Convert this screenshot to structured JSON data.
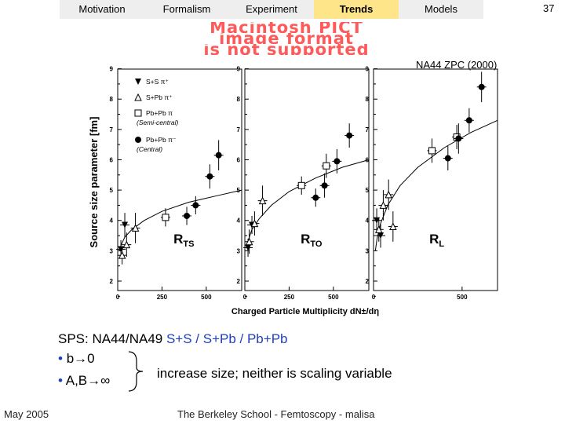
{
  "nav": {
    "tabs": [
      "Motivation",
      "Formalism",
      "Experiment",
      "Trends",
      "Models"
    ],
    "active": "Trends",
    "active_color": "#ffe58a"
  },
  "slide_number": "37",
  "placeholder": {
    "lines": [
      "Macintosh PICT",
      "image format",
      "is not supported"
    ],
    "color": "#ff5a5a"
  },
  "reference": "NA44 ZPC (2000)",
  "chart_data": [
    {
      "type": "scatter",
      "panel_label": "R_TS",
      "label_main": "R",
      "label_sub": "TS",
      "x_ticks": [
        0,
        250,
        500
      ],
      "ylim": [
        2,
        9
      ],
      "y_ticks": [
        2,
        3,
        4,
        5,
        6,
        7,
        8,
        9
      ],
      "legend": [
        {
          "marker": "filled-down-triangle",
          "label": "S+S  π⁺"
        },
        {
          "marker": "open-triangle",
          "label": "S+Pb  π⁺"
        },
        {
          "marker": "open-square",
          "label": "Pb+Pb  π",
          "note": "(Semi-central)"
        },
        {
          "marker": "filled-circle",
          "label": "Pb+Pb  π⁻",
          "note": "(Central)"
        }
      ],
      "curve": [
        [
          10,
          3.0
        ],
        [
          20,
          3.2
        ],
        [
          40,
          3.45
        ],
        [
          80,
          3.7
        ],
        [
          150,
          4.0
        ],
        [
          250,
          4.3
        ],
        [
          400,
          4.6
        ],
        [
          550,
          4.8
        ],
        [
          700,
          5.0
        ]
      ],
      "points": [
        {
          "marker": "filled-down-triangle",
          "x": 18,
          "y": 3.05,
          "err": 0.3
        },
        {
          "marker": "filled-down-triangle",
          "x": 40,
          "y": 3.85,
          "err": 0.4
        },
        {
          "marker": "open-triangle",
          "x": 25,
          "y": 2.85,
          "err": 0.3
        },
        {
          "marker": "open-triangle",
          "x": 50,
          "y": 3.2,
          "err": 0.4
        },
        {
          "marker": "open-triangle",
          "x": 100,
          "y": 3.75,
          "err": 0.5
        },
        {
          "marker": "open-square",
          "x": 270,
          "y": 4.1,
          "err": 0.3
        },
        {
          "marker": "filled-circle",
          "x": 390,
          "y": 4.15,
          "err": 0.3
        },
        {
          "marker": "filled-circle",
          "x": 440,
          "y": 4.5,
          "err": 0.3
        },
        {
          "marker": "filled-circle",
          "x": 520,
          "y": 5.45,
          "err": 0.4
        },
        {
          "marker": "filled-circle",
          "x": 570,
          "y": 6.15,
          "err": 0.5
        }
      ]
    },
    {
      "type": "scatter",
      "panel_label": "R_TO",
      "label_main": "R",
      "label_sub": "TO",
      "x_ticks": [
        0,
        250,
        500
      ],
      "ylim": [
        2,
        9
      ],
      "y_ticks": [
        2,
        3,
        4,
        5,
        6,
        7,
        8,
        9
      ],
      "curve": [
        [
          10,
          3.1
        ],
        [
          20,
          3.35
        ],
        [
          40,
          3.7
        ],
        [
          80,
          4.05
        ],
        [
          150,
          4.5
        ],
        [
          250,
          4.95
        ],
        [
          400,
          5.4
        ],
        [
          550,
          5.75
        ],
        [
          700,
          6.0
        ]
      ],
      "points": [
        {
          "marker": "filled-down-triangle",
          "x": 18,
          "y": 3.1,
          "err": 0.3
        },
        {
          "marker": "filled-down-triangle",
          "x": 40,
          "y": 3.85,
          "err": 0.3
        },
        {
          "marker": "open-triangle",
          "x": 25,
          "y": 3.3,
          "err": 0.4
        },
        {
          "marker": "open-triangle",
          "x": 55,
          "y": 3.9,
          "err": 0.4
        },
        {
          "marker": "open-triangle",
          "x": 100,
          "y": 4.65,
          "err": 0.5
        },
        {
          "marker": "open-square",
          "x": 320,
          "y": 5.15,
          "err": 0.3
        },
        {
          "marker": "open-square",
          "x": 460,
          "y": 5.8,
          "err": 0.4
        },
        {
          "marker": "filled-circle",
          "x": 400,
          "y": 4.75,
          "err": 0.3
        },
        {
          "marker": "filled-circle",
          "x": 450,
          "y": 5.15,
          "err": 0.4
        },
        {
          "marker": "filled-circle",
          "x": 520,
          "y": 5.95,
          "err": 0.4
        },
        {
          "marker": "filled-circle",
          "x": 590,
          "y": 6.8,
          "err": 0.4
        }
      ]
    },
    {
      "type": "scatter",
      "panel_label": "R_L",
      "label_main": "R",
      "label_sub": "L",
      "x_ticks": [
        0,
        500
      ],
      "ylim": [
        2,
        9
      ],
      "y_ticks": [
        2,
        3,
        4,
        5,
        6,
        7,
        8,
        9
      ],
      "xlabel": "Charged Particle Multiplicity dN±/dη",
      "ylabel": "Source size parameter [fm]",
      "curve": [
        [
          10,
          3.0
        ],
        [
          20,
          3.4
        ],
        [
          40,
          3.9
        ],
        [
          80,
          4.5
        ],
        [
          150,
          5.15
        ],
        [
          250,
          5.75
        ],
        [
          400,
          6.4
        ],
        [
          550,
          6.9
        ],
        [
          700,
          7.3
        ]
      ],
      "points": [
        {
          "marker": "filled-down-triangle",
          "x": 18,
          "y": 4.0,
          "err": 0.4
        },
        {
          "marker": "filled-down-triangle",
          "x": 40,
          "y": 3.5,
          "err": 0.4
        },
        {
          "marker": "open-triangle",
          "x": 30,
          "y": 3.7,
          "err": 0.4
        },
        {
          "marker": "open-triangle",
          "x": 55,
          "y": 4.5,
          "err": 0.5
        },
        {
          "marker": "open-triangle",
          "x": 85,
          "y": 4.85,
          "err": 0.5
        },
        {
          "marker": "open-triangle",
          "x": 110,
          "y": 3.8,
          "err": 0.5
        },
        {
          "marker": "open-square",
          "x": 330,
          "y": 6.3,
          "err": 0.4
        },
        {
          "marker": "open-square",
          "x": 470,
          "y": 6.75,
          "err": 0.4
        },
        {
          "marker": "filled-circle",
          "x": 420,
          "y": 6.05,
          "err": 0.4
        },
        {
          "marker": "filled-circle",
          "x": 480,
          "y": 6.7,
          "err": 0.5
        },
        {
          "marker": "filled-circle",
          "x": 540,
          "y": 7.3,
          "err": 0.4
        },
        {
          "marker": "filled-circle",
          "x": 610,
          "y": 8.4,
          "err": 0.5
        }
      ]
    }
  ],
  "body": {
    "sps_prefix": "SPS: NA44/NA49  ",
    "sps_systems": "S+S / S+Pb / Pb+Pb",
    "bullet1": "b→0",
    "bullet2": "A,B→∞",
    "conclusion": "increase size; neither is scaling variable",
    "bullet_color": "#1f3fbf"
  },
  "footer": {
    "date": "May 2005",
    "center": "The Berkeley School - Femtoscopy - malisa"
  }
}
